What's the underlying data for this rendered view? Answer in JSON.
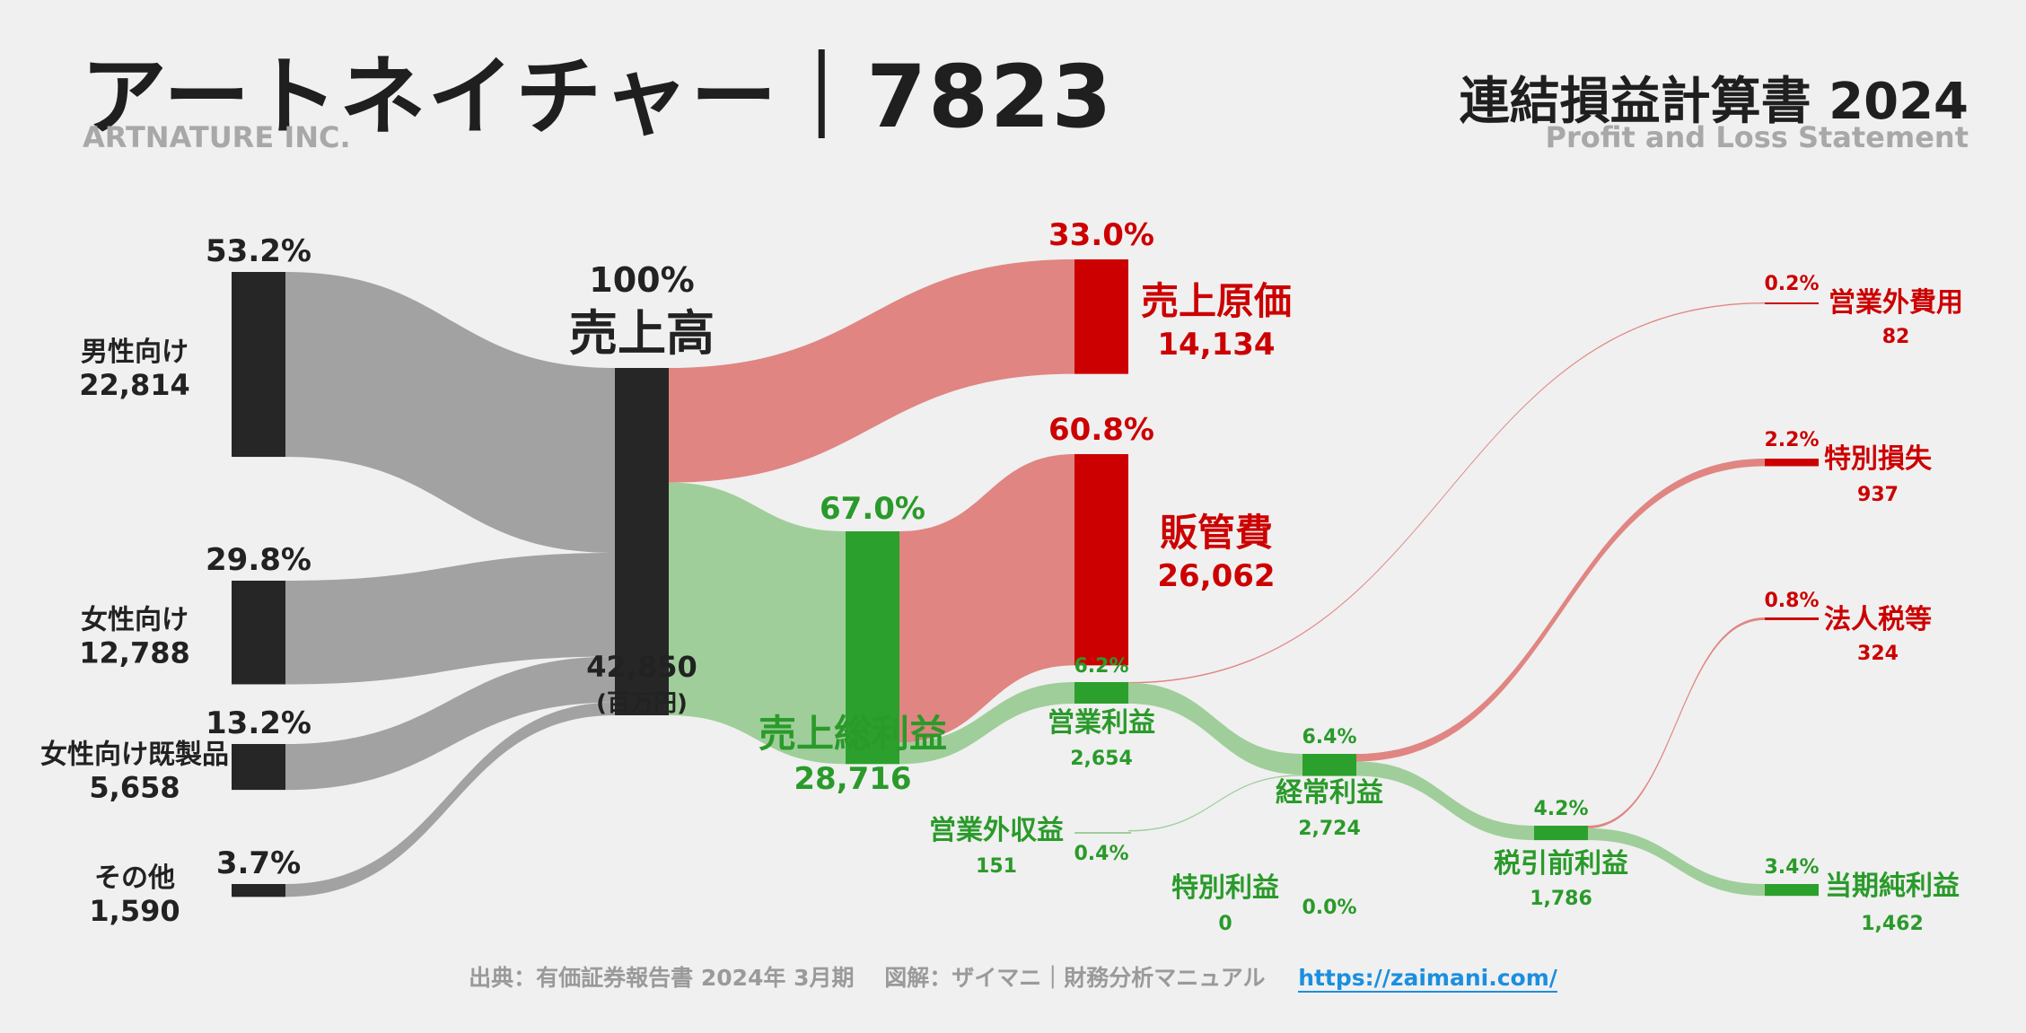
{
  "header": {
    "title": "アートネイチャー｜7823",
    "subtitle": "ARTNATURE INC.",
    "statement_title": "連結損益計算書 2024",
    "statement_subtitle": "Profit and Loss Statement"
  },
  "footer": {
    "source": "出典：有価証券報告書 2024年 3月期　 図解：ザイマニ｜財務分析マニュアル",
    "link": "https://zaimani.com/"
  },
  "colors": {
    "dark": "#262626",
    "gray_flow": "#a2a2a2",
    "green": "#2ca02c",
    "green_flow": "#9fce9a",
    "red": "#cc0000",
    "red_flow": "#e08582",
    "red_text": "#cc0000",
    "green_text": "#2a9a2a"
  },
  "chart_data": {
    "type": "sankey",
    "unit": "(百万円)",
    "nodes": [
      {
        "id": "male",
        "label": "男性向け",
        "value": 22814,
        "value_label": "22,814",
        "pct": "53.2%"
      },
      {
        "id": "female",
        "label": "女性向け",
        "value": 12788,
        "value_label": "12,788",
        "pct": "29.8%"
      },
      {
        "id": "female_ready",
        "label": "女性向け既製品",
        "value": 5658,
        "value_label": "5,658",
        "pct": "13.2%"
      },
      {
        "id": "other",
        "label": "その他",
        "value": 1590,
        "value_label": "1,590",
        "pct": "3.7%"
      },
      {
        "id": "revenue",
        "label": "売上高",
        "value": 42850,
        "value_label": "42,850",
        "pct": "100%"
      },
      {
        "id": "cogs",
        "label": "売上原価",
        "value": 14134,
        "value_label": "14,134",
        "pct": "33.0%"
      },
      {
        "id": "gross",
        "label": "売上総利益",
        "value": 28716,
        "value_label": "28,716",
        "pct": "67.0%"
      },
      {
        "id": "sga",
        "label": "販管費",
        "value": 26062,
        "value_label": "26,062",
        "pct": "60.8%"
      },
      {
        "id": "op",
        "label": "営業利益",
        "value": 2654,
        "value_label": "2,654",
        "pct": "6.2%"
      },
      {
        "id": "nonop_inc",
        "label": "営業外収益",
        "value": 151,
        "value_label": "151",
        "pct": "0.4%"
      },
      {
        "id": "nonop_exp",
        "label": "営業外費用",
        "value": 82,
        "value_label": "82",
        "pct": "0.2%"
      },
      {
        "id": "ordinary",
        "label": "経常利益",
        "value": 2724,
        "value_label": "2,724",
        "pct": "6.4%"
      },
      {
        "id": "ext_gain",
        "label": "特別利益",
        "value": 0,
        "value_label": "0",
        "pct": "0.0%"
      },
      {
        "id": "ext_loss",
        "label": "特別損失",
        "value": 937,
        "value_label": "937",
        "pct": "2.2%"
      },
      {
        "id": "pretax",
        "label": "税引前利益",
        "value": 1786,
        "value_label": "1,786",
        "pct": "4.2%"
      },
      {
        "id": "tax",
        "label": "法人税等",
        "value": 324,
        "value_label": "324",
        "pct": "0.8%"
      },
      {
        "id": "net",
        "label": "当期純利益",
        "value": 1462,
        "value_label": "1,462",
        "pct": "3.4%"
      }
    ],
    "links": [
      {
        "source": "male",
        "target": "revenue",
        "value": 22814
      },
      {
        "source": "female",
        "target": "revenue",
        "value": 12788
      },
      {
        "source": "female_ready",
        "target": "revenue",
        "value": 5658
      },
      {
        "source": "other",
        "target": "revenue",
        "value": 1590
      },
      {
        "source": "revenue",
        "target": "cogs",
        "value": 14134
      },
      {
        "source": "revenue",
        "target": "gross",
        "value": 28716
      },
      {
        "source": "gross",
        "target": "sga",
        "value": 26062
      },
      {
        "source": "gross",
        "target": "op",
        "value": 2654
      },
      {
        "source": "op",
        "target": "nonop_exp",
        "value": 82
      },
      {
        "source": "op",
        "target": "ordinary",
        "value": 2572
      },
      {
        "source": "nonop_inc",
        "target": "ordinary",
        "value": 151
      },
      {
        "source": "ordinary",
        "target": "ext_loss",
        "value": 937
      },
      {
        "source": "ordinary",
        "target": "pretax",
        "value": 1786
      },
      {
        "source": "pretax",
        "target": "tax",
        "value": 324
      },
      {
        "source": "pretax",
        "target": "net",
        "value": 1462
      }
    ]
  }
}
